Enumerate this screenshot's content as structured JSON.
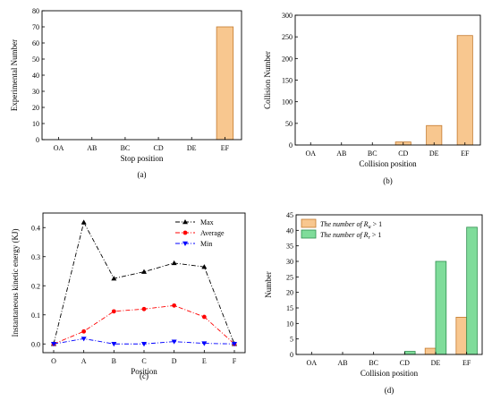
{
  "chart_data": [
    {
      "type": "bar",
      "panel": "(a)",
      "xlabel": "Stop position",
      "ylabel": "Experimental Number",
      "categories": [
        "OA",
        "AB",
        "BC",
        "CD",
        "DE",
        "EF"
      ],
      "values": [
        0,
        0,
        0,
        0,
        0,
        70
      ],
      "ylim": [
        0,
        80
      ],
      "yticks": [
        0,
        10,
        20,
        30,
        40,
        50,
        60,
        70,
        80
      ],
      "color": "#f8c78f"
    },
    {
      "type": "bar",
      "panel": "(b)",
      "xlabel": "Collision position",
      "ylabel": "Collision Number",
      "categories": [
        "OA",
        "AB",
        "BC",
        "CD",
        "DE",
        "EF"
      ],
      "values": [
        0,
        0,
        0,
        7,
        45,
        253
      ],
      "ylim": [
        0,
        300
      ],
      "yticks": [
        0,
        50,
        100,
        150,
        200,
        250,
        300
      ],
      "color": "#f8c78f"
    },
    {
      "type": "line",
      "panel": "(c)",
      "xlabel": "Position",
      "ylabel": "Instantaneous kinetic energy (KJ)",
      "categories": [
        "O",
        "A",
        "B",
        "C",
        "D",
        "E",
        "F"
      ],
      "ylim": [
        -0.03,
        0.45
      ],
      "yticks": [
        "0.0",
        "0.1",
        "0.2",
        "0.3",
        "0.4"
      ],
      "series": [
        {
          "name": "Max",
          "color": "#000000",
          "marker": "triangle-up",
          "values": [
            0,
            0.418,
            0.225,
            0.248,
            0.278,
            0.265,
            0
          ]
        },
        {
          "name": "Average",
          "color": "#ff0000",
          "marker": "circle",
          "values": [
            0,
            0.043,
            0.112,
            0.12,
            0.132,
            0.093,
            0
          ]
        },
        {
          "name": "Min",
          "color": "#0000ff",
          "marker": "triangle-down",
          "values": [
            0,
            0.018,
            0,
            0,
            0.008,
            0.002,
            0
          ]
        }
      ],
      "legend_position": "top-right"
    },
    {
      "type": "bar",
      "panel": "(d)",
      "xlabel": "Collision position",
      "ylabel": "Number",
      "categories": [
        "OA",
        "AB",
        "BC",
        "CD",
        "DE",
        "EF"
      ],
      "ylim": [
        0,
        45
      ],
      "yticks": [
        0,
        5,
        10,
        15,
        20,
        25,
        30,
        35,
        40,
        45
      ],
      "series": [
        {
          "name_prefix": "The number of ",
          "name_math": "R",
          "name_sub": "u",
          "name_suffix": " > 1",
          "color": "#f8c78f",
          "values": [
            0,
            0,
            0,
            0,
            2,
            12
          ]
        },
        {
          "name_prefix": "The number of ",
          "name_math": "R",
          "name_sub": "r",
          "name_suffix": " > 1",
          "color": "#7fdc9a",
          "values": [
            0,
            0,
            0,
            1,
            30,
            41
          ]
        }
      ],
      "legend_position": "top-left"
    }
  ]
}
